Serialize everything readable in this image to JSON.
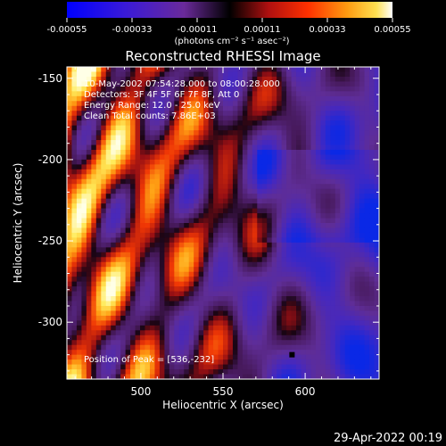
{
  "colorbar": {
    "ticks": [
      "-0.00055",
      "-0.00033",
      "-0.00011",
      "0.00011",
      "0.00033",
      "0.00055"
    ],
    "tick_values": [
      -0.00055,
      -0.00033,
      -0.00011,
      0.00011,
      0.00033,
      0.00055
    ],
    "range": [
      -0.00055,
      0.00055
    ],
    "unit_label": "(photons cm⁻² s⁻¹ asec⁻²)"
  },
  "chart_data": {
    "type": "heatmap",
    "title": "Reconstructed RHESSI Image",
    "xlabel": "Heliocentric X (arcsec)",
    "ylabel": "Heliocentric Y (arcsec)",
    "xlim": [
      455,
      645
    ],
    "ylim": [
      -335,
      -143
    ],
    "x_ticks": [
      500,
      550,
      600
    ],
    "y_ticks": [
      -150,
      -200,
      -250,
      -300
    ],
    "annotations": [
      "10-May-2002 07:54:28.000 to 08:00:28.000",
      "Detectors: 3F 4F 5F 6F 7F 8F, Att 0",
      "Energy Range: 12.0 - 25.0 keV",
      "Clean    Total counts: 7.86E+03"
    ],
    "peak_label": "Position of Peak = [536,-232]",
    "peak_position": [
      536,
      -232
    ]
  },
  "footer": {
    "timestamp": "29-Apr-2022 00:19"
  }
}
